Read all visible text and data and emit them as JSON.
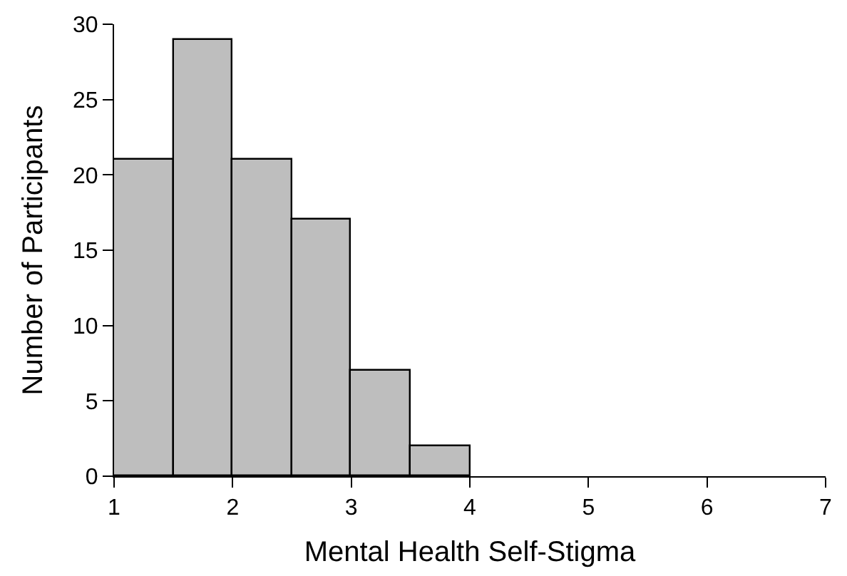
{
  "chart_data": {
    "type": "histogram",
    "xlabel": "Mental Health Self-Stigma",
    "ylabel": "Number of Participants",
    "bins": [
      1,
      1.5,
      2,
      2.5,
      3,
      3.5,
      4
    ],
    "values": [
      21,
      29,
      21,
      17,
      7,
      2
    ],
    "color": "#bebebe",
    "xlim": [
      1,
      7
    ],
    "xticks": [
      1,
      2,
      3,
      4,
      5,
      6,
      7
    ],
    "ylim": [
      0,
      30
    ],
    "yticks": [
      0,
      5,
      10,
      15,
      20,
      25,
      30
    ],
    "grid": false
  }
}
